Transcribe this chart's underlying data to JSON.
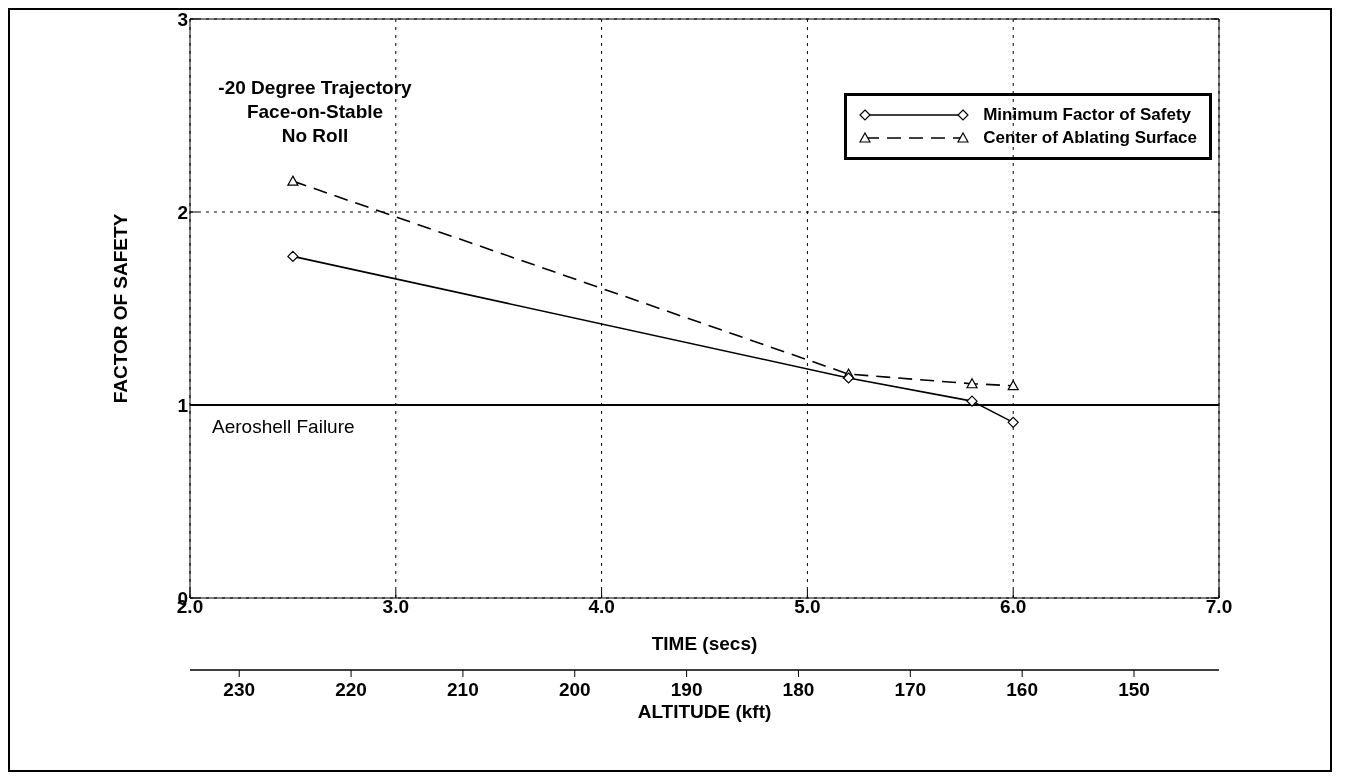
{
  "chart_data": {
    "type": "line",
    "xlabel": "TIME (secs)",
    "ylabel": "FACTOR OF SAFETY",
    "x2label": "ALTITUDE (kft)",
    "xlim": [
      2.0,
      7.0
    ],
    "xticks": [
      {
        "value": 2,
        "label": "2.0"
      },
      {
        "value": 3,
        "label": "3.0"
      },
      {
        "value": 4,
        "label": "4.0"
      },
      {
        "value": 5,
        "label": "5.0"
      },
      {
        "value": 6,
        "label": "6.0"
      },
      {
        "value": 7,
        "label": "7.0"
      }
    ],
    "x2lim": [
      234.4,
      142.4
    ],
    "x2ticks": [
      230,
      220,
      210,
      200,
      190,
      180,
      170,
      160,
      150
    ],
    "ylim": [
      0,
      3
    ],
    "yticks": [
      0,
      1,
      2,
      3
    ],
    "grid": true,
    "legend": "top right",
    "series": [
      {
        "name": "Minimum Factor of Safety",
        "color": "#000000",
        "marker": "diamond",
        "line_style": "solid",
        "x": [
          2.5,
          5.2,
          5.8,
          6.0
        ],
        "values": [
          1.77,
          1.14,
          1.02,
          0.91
        ]
      },
      {
        "name": "Center of Ablating Surface",
        "color": "#000000",
        "marker": "triangle",
        "line_style": "dashed",
        "x": [
          2.5,
          5.2,
          5.8,
          6.0
        ],
        "values": [
          2.16,
          1.16,
          1.11,
          1.1
        ]
      }
    ],
    "ref_lines": [
      {
        "axis": "y",
        "value": 1,
        "label": "Aeroshell Failure",
        "color": "#000000",
        "line_style": "solid"
      }
    ],
    "annotations": [
      "-20 Degree Trajectory\nFace-on-Stable\nNo Roll"
    ]
  }
}
